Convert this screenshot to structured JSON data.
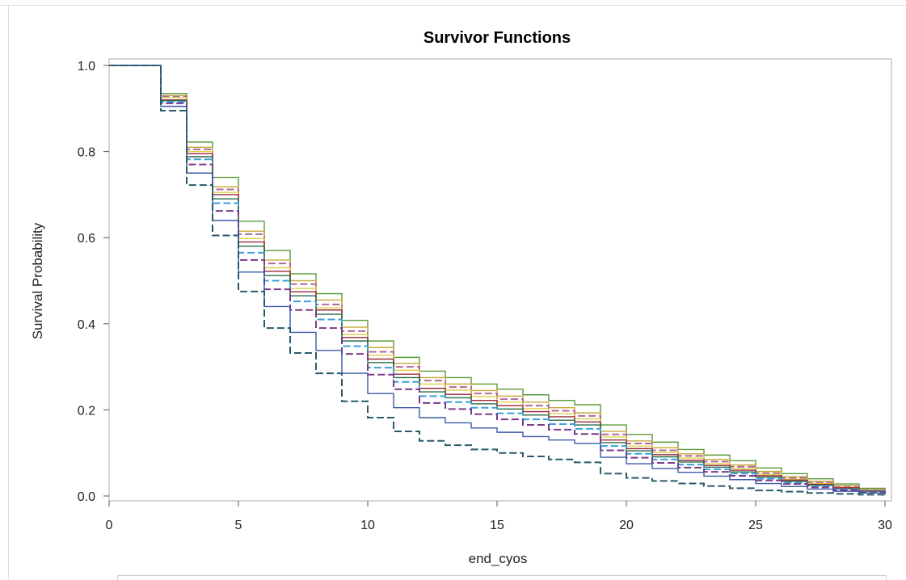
{
  "chart_data": {
    "type": "line",
    "step": true,
    "title": "Survivor Functions",
    "xlabel": "end_cyos",
    "ylabel": "Survival Probability",
    "xlim": [
      0,
      30
    ],
    "ylim": [
      0,
      1
    ],
    "x_ticks": [
      "0",
      "5",
      "10",
      "15",
      "20",
      "25",
      "30"
    ],
    "y_ticks": [
      "0.0",
      "0.2",
      "0.4",
      "0.6",
      "0.8",
      "1.0"
    ],
    "grid": false,
    "legend": "none",
    "x": [
      0,
      2,
      3,
      4,
      5,
      6,
      7,
      8,
      9,
      10,
      11,
      12,
      13,
      14,
      15,
      16,
      17,
      18,
      19,
      20,
      21,
      22,
      23,
      24,
      25,
      26,
      27,
      28,
      29,
      30
    ],
    "series": [
      {
        "color": "#5a9a3a",
        "dash": "solid",
        "values": [
          1.0,
          0.935,
          0.822,
          0.74,
          0.638,
          0.57,
          0.516,
          0.47,
          0.408,
          0.36,
          0.322,
          0.29,
          0.275,
          0.26,
          0.248,
          0.235,
          0.222,
          0.212,
          0.165,
          0.143,
          0.125,
          0.108,
          0.095,
          0.082,
          0.065,
          0.052,
          0.04,
          0.028,
          0.018,
          0.01
        ]
      },
      {
        "color": "#c8a83c",
        "dash": "solid",
        "values": [
          1.0,
          0.93,
          0.81,
          0.718,
          0.615,
          0.548,
          0.5,
          0.455,
          0.392,
          0.345,
          0.308,
          0.275,
          0.26,
          0.245,
          0.232,
          0.218,
          0.205,
          0.193,
          0.15,
          0.128,
          0.112,
          0.098,
          0.085,
          0.072,
          0.057,
          0.045,
          0.034,
          0.024,
          0.015,
          0.009
        ]
      },
      {
        "color": "#b06a9a",
        "dash": "dash",
        "values": [
          1.0,
          0.928,
          0.805,
          0.712,
          0.608,
          0.54,
          0.492,
          0.445,
          0.383,
          0.335,
          0.3,
          0.268,
          0.253,
          0.238,
          0.225,
          0.21,
          0.198,
          0.186,
          0.143,
          0.122,
          0.106,
          0.093,
          0.08,
          0.068,
          0.053,
          0.042,
          0.031,
          0.022,
          0.014,
          0.008
        ]
      },
      {
        "color": "#e0d04a",
        "dash": "solid",
        "values": [
          1.0,
          0.925,
          0.8,
          0.705,
          0.598,
          0.53,
          0.482,
          0.437,
          0.375,
          0.327,
          0.292,
          0.26,
          0.246,
          0.231,
          0.218,
          0.203,
          0.191,
          0.179,
          0.137,
          0.116,
          0.101,
          0.088,
          0.075,
          0.064,
          0.05,
          0.039,
          0.029,
          0.02,
          0.013,
          0.007
        ]
      },
      {
        "color": "#9a2a3a",
        "dash": "solid",
        "values": [
          1.0,
          0.92,
          0.795,
          0.7,
          0.59,
          0.522,
          0.474,
          0.432,
          0.368,
          0.318,
          0.283,
          0.25,
          0.236,
          0.222,
          0.21,
          0.196,
          0.184,
          0.172,
          0.13,
          0.11,
          0.096,
          0.083,
          0.071,
          0.06,
          0.047,
          0.037,
          0.027,
          0.019,
          0.012,
          0.007
        ]
      },
      {
        "color": "#2a6a4a",
        "dash": "solid",
        "values": [
          1.0,
          0.918,
          0.788,
          0.69,
          0.58,
          0.512,
          0.465,
          0.422,
          0.36,
          0.31,
          0.275,
          0.242,
          0.228,
          0.214,
          0.202,
          0.188,
          0.176,
          0.165,
          0.124,
          0.105,
          0.091,
          0.079,
          0.067,
          0.056,
          0.044,
          0.034,
          0.025,
          0.017,
          0.011,
          0.006
        ]
      },
      {
        "color": "#3aa0d8",
        "dash": "dash",
        "values": [
          1.0,
          0.915,
          0.782,
          0.68,
          0.565,
          0.5,
          0.452,
          0.41,
          0.348,
          0.298,
          0.265,
          0.232,
          0.218,
          0.205,
          0.192,
          0.178,
          0.167,
          0.156,
          0.116,
          0.098,
          0.085,
          0.073,
          0.062,
          0.052,
          0.04,
          0.031,
          0.023,
          0.016,
          0.01,
          0.006
        ]
      },
      {
        "color": "#7a3a8a",
        "dash": "dash",
        "values": [
          1.0,
          0.912,
          0.77,
          0.662,
          0.548,
          0.48,
          0.432,
          0.39,
          0.33,
          0.282,
          0.248,
          0.216,
          0.202,
          0.19,
          0.178,
          0.165,
          0.154,
          0.144,
          0.106,
          0.089,
          0.077,
          0.066,
          0.056,
          0.047,
          0.036,
          0.028,
          0.02,
          0.014,
          0.009,
          0.005
        ]
      },
      {
        "color": "#3a5aa8",
        "dash": "solid",
        "values": [
          1.0,
          0.905,
          0.75,
          0.64,
          0.52,
          0.44,
          0.38,
          0.338,
          0.285,
          0.238,
          0.205,
          0.182,
          0.17,
          0.158,
          0.148,
          0.138,
          0.13,
          0.122,
          0.09,
          0.075,
          0.064,
          0.055,
          0.046,
          0.038,
          0.029,
          0.022,
          0.016,
          0.011,
          0.007,
          0.004
        ]
      },
      {
        "color": "#2a5a6a",
        "dash": "dash",
        "values": [
          1.0,
          0.895,
          0.722,
          0.605,
          0.475,
          0.39,
          0.332,
          0.285,
          0.22,
          0.182,
          0.15,
          0.128,
          0.118,
          0.108,
          0.1,
          0.092,
          0.085,
          0.078,
          0.052,
          0.042,
          0.035,
          0.029,
          0.023,
          0.018,
          0.013,
          0.01,
          0.007,
          0.005,
          0.003,
          0.002
        ]
      }
    ]
  }
}
